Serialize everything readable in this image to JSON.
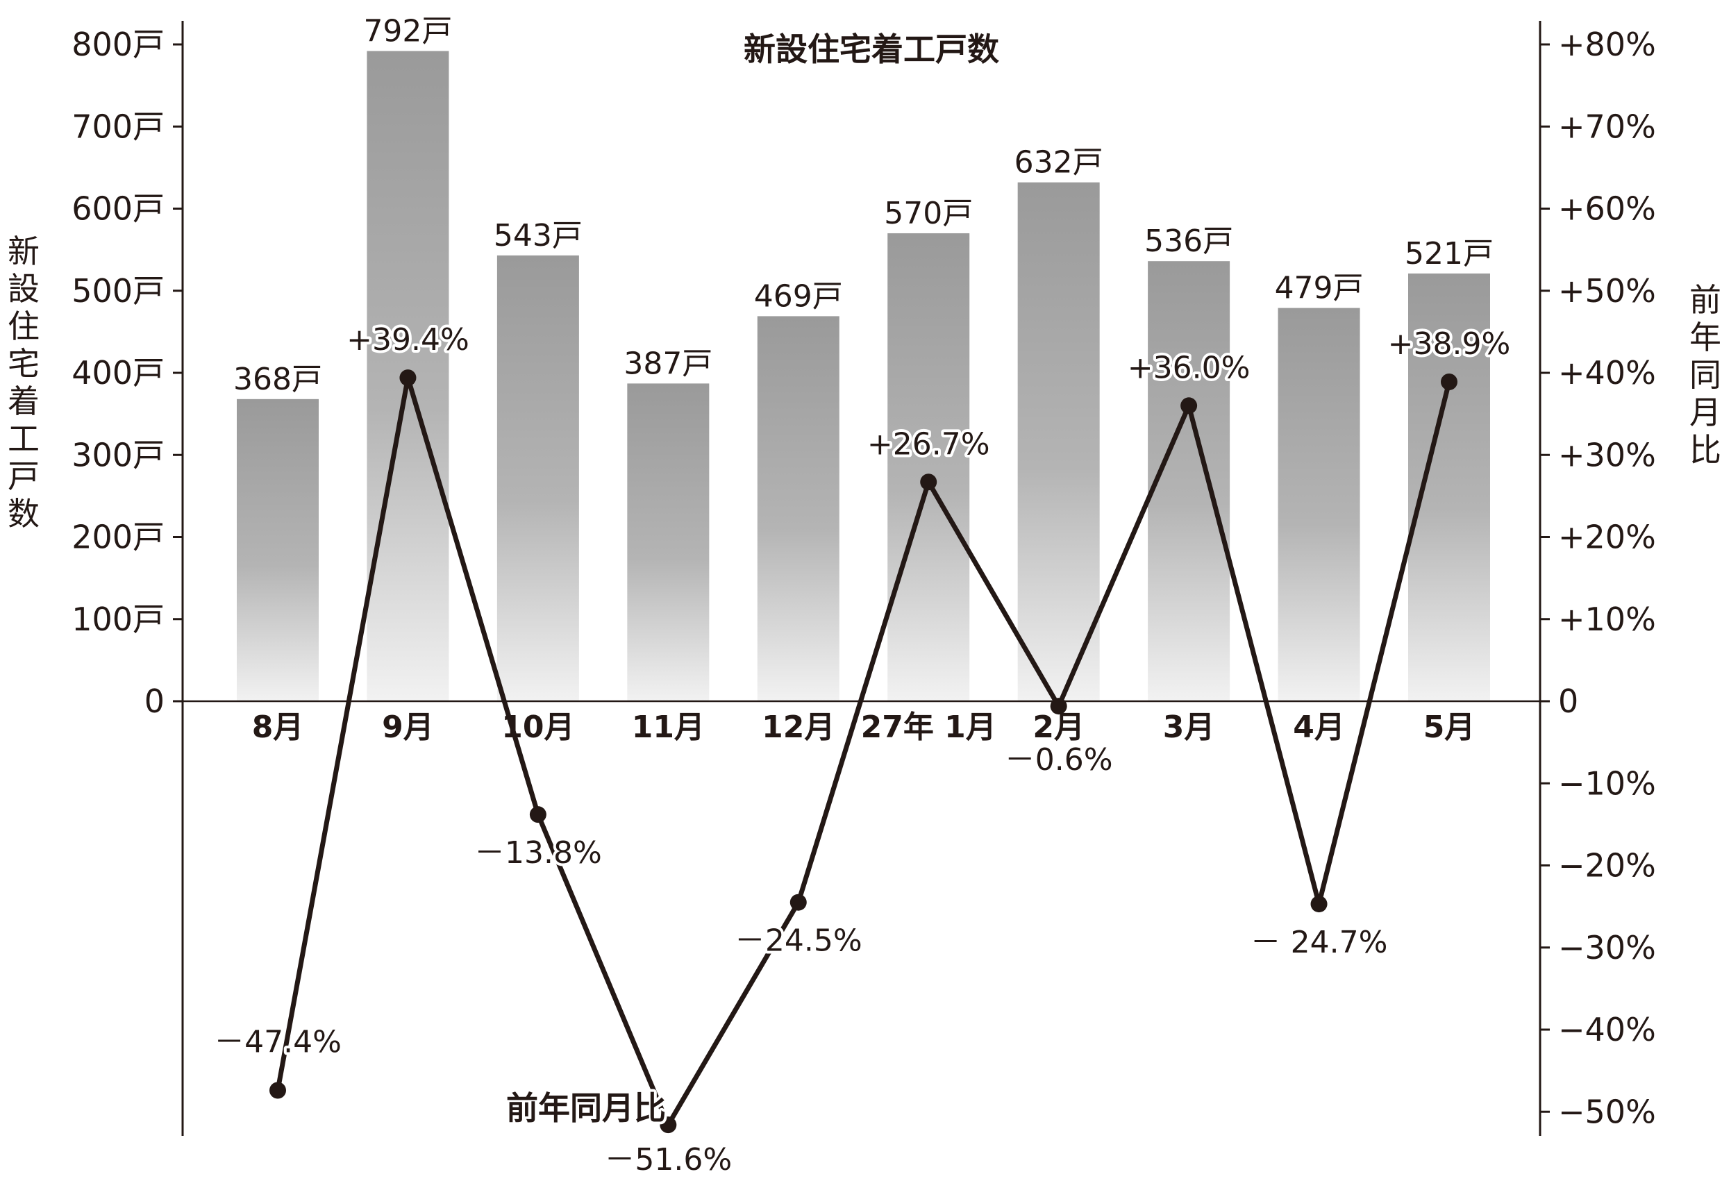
{
  "chart_data": {
    "type": "bar",
    "title": "新設住宅着工戸数",
    "categories": [
      "8月",
      "9月",
      "10月",
      "11月",
      "12月",
      "27年 1月",
      "2月",
      "3月",
      "4月",
      "5月"
    ],
    "series": [
      {
        "name": "新設住宅着工戸数",
        "type": "bar",
        "axis": "left",
        "values": [
          368,
          792,
          543,
          387,
          469,
          570,
          632,
          536,
          479,
          521
        ],
        "labels": [
          "368戸",
          "792戸",
          "543戸",
          "387戸",
          "469戸",
          "570戸",
          "632戸",
          "536戸",
          "479戸",
          "521戸"
        ]
      },
      {
        "name": "前年同月比",
        "type": "line",
        "axis": "right",
        "values": [
          -47.4,
          39.4,
          -13.8,
          -51.6,
          -24.5,
          26.7,
          -0.6,
          36.0,
          -24.7,
          38.9
        ],
        "labels": [
          "－47.4%",
          "+39.4%",
          "－13.8%",
          "－51.6%",
          "－24.5%",
          "+26.7%",
          "－0.6%",
          "+36.0%",
          "－ 24.7%",
          "+38.9%"
        ]
      }
    ],
    "ylabel": "新設住宅着工戸数",
    "y2label": "前年同月比",
    "ylim": [
      0,
      800
    ],
    "y2lim": [
      -50,
      80
    ],
    "yticks": [
      "0",
      "100戸",
      "200戸",
      "300戸",
      "400戸",
      "500戸",
      "600戸",
      "700戸",
      "800戸"
    ],
    "y2ticks": [
      "−50%",
      "−40%",
      "−30%",
      "−20%",
      "−10%",
      "0",
      "+10%",
      "+20%",
      "+30%",
      "+40%",
      "+50%",
      "+60%",
      "+70%",
      "+80%"
    ],
    "colors": {
      "bar_top": "#9a9a9a",
      "bar_bottom": "#f2f2f2",
      "line": "#231815",
      "axis": "#231815"
    }
  }
}
